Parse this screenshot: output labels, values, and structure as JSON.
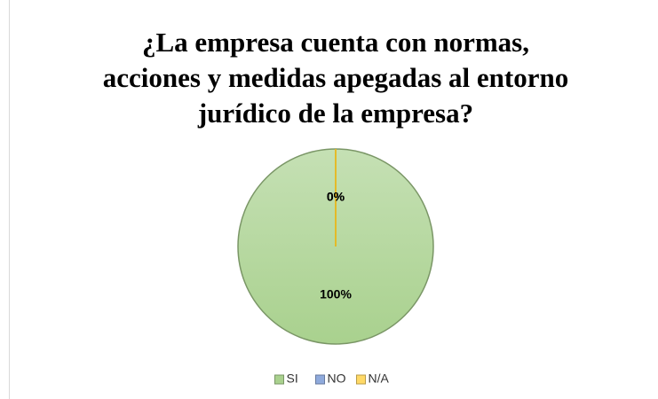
{
  "chart_data": {
    "type": "pie",
    "title": [
      "¿La empresa cuenta con normas,",
      "acciones y medidas apegadas al entorno",
      "jurídico de la empresa?"
    ],
    "categories": [
      "SI",
      "NO",
      "N/A"
    ],
    "values": [
      100,
      0,
      0
    ],
    "value_labels": [
      "100%",
      "0%",
      "0%"
    ],
    "colors": [
      "#a9d18e",
      "#8faadc",
      "#ffd966"
    ],
    "legend": "bottom"
  }
}
